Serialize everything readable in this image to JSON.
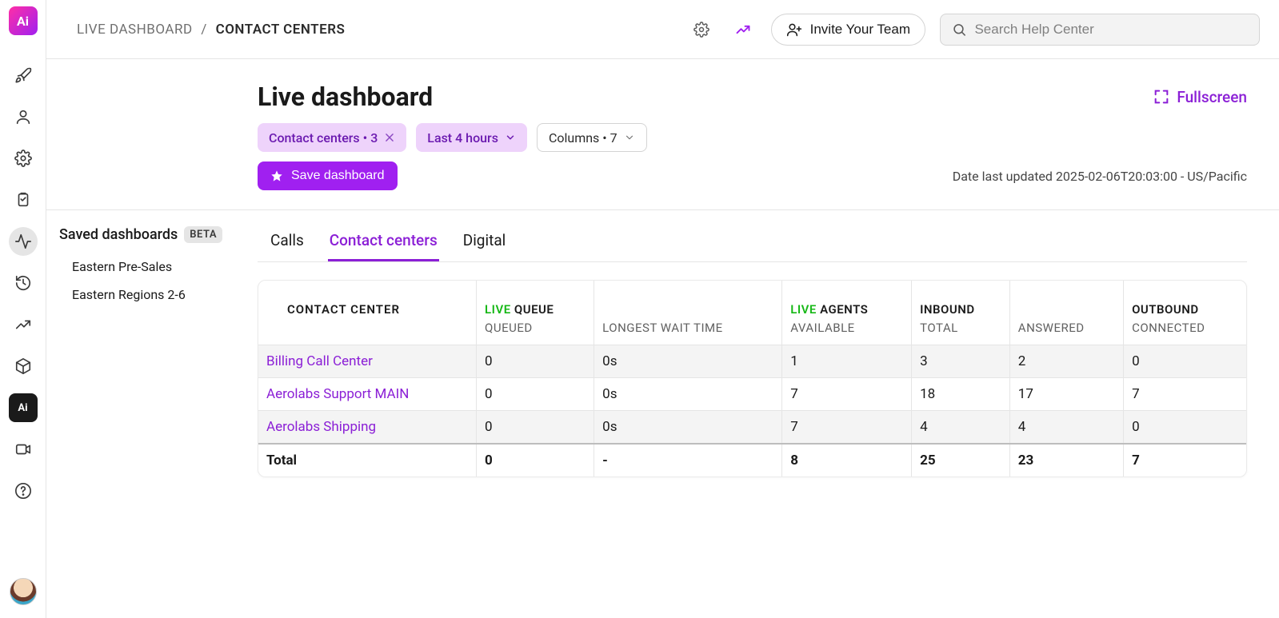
{
  "colors": {
    "accent": "#a020f0",
    "accent_text": "#8b1fd6",
    "live_green": "#17b817",
    "chip_bg": "#eed3fb",
    "chip_text": "#6b1ab0"
  },
  "rail": {
    "logo_text": "Ai"
  },
  "breadcrumb": {
    "parent": "LIVE DASHBOARD",
    "current": "CONTACT CENTERS"
  },
  "topbar": {
    "invite_label": "Invite Your Team",
    "search_placeholder": "Search Help Center"
  },
  "header": {
    "title": "Live dashboard",
    "fullscreen_label": "Fullscreen",
    "filter_chip_label": "Contact centers • 3",
    "time_chip_label": "Last 4 hours",
    "columns_chip_label": "Columns • 7",
    "save_label": "Save dashboard",
    "updated_text": "Date last updated 2025-02-06T20:03:00 - US/Pacific"
  },
  "sidebar": {
    "title": "Saved dashboards",
    "badge": "BETA",
    "items": [
      {
        "label": "Eastern Pre-Sales"
      },
      {
        "label": "Eastern Regions 2-6"
      }
    ]
  },
  "tabs": {
    "items": [
      {
        "label": "Calls",
        "active": false
      },
      {
        "label": "Contact centers",
        "active": true
      },
      {
        "label": "Digital",
        "active": false
      }
    ]
  },
  "table": {
    "columns": [
      {
        "top": "CONTACT CENTER",
        "sub": ""
      },
      {
        "live": true,
        "top": "QUEUE",
        "sub": "QUEUED"
      },
      {
        "top": "",
        "sub": "LONGEST WAIT TIME"
      },
      {
        "live": true,
        "top": "AGENTS",
        "sub": "AVAILABLE"
      },
      {
        "top": "INBOUND",
        "sub": "TOTAL"
      },
      {
        "top": "",
        "sub": "ANSWERED"
      },
      {
        "top": "OUTBOUND",
        "sub": "CONNECTED"
      }
    ],
    "rows": [
      {
        "name": "Billing Call Center",
        "queued": "0",
        "lwt": "0s",
        "agents": "1",
        "inbound": "3",
        "answered": "2",
        "outbound": "0"
      },
      {
        "name": "Aerolabs Support MAIN",
        "queued": "0",
        "lwt": "0s",
        "agents": "7",
        "inbound": "18",
        "answered": "17",
        "outbound": "7"
      },
      {
        "name": "Aerolabs Shipping",
        "queued": "0",
        "lwt": "0s",
        "agents": "7",
        "inbound": "4",
        "answered": "4",
        "outbound": "0"
      }
    ],
    "totals": {
      "label": "Total",
      "queued": "0",
      "lwt": "-",
      "agents": "8",
      "inbound": "25",
      "answered": "23",
      "outbound": "7"
    }
  }
}
